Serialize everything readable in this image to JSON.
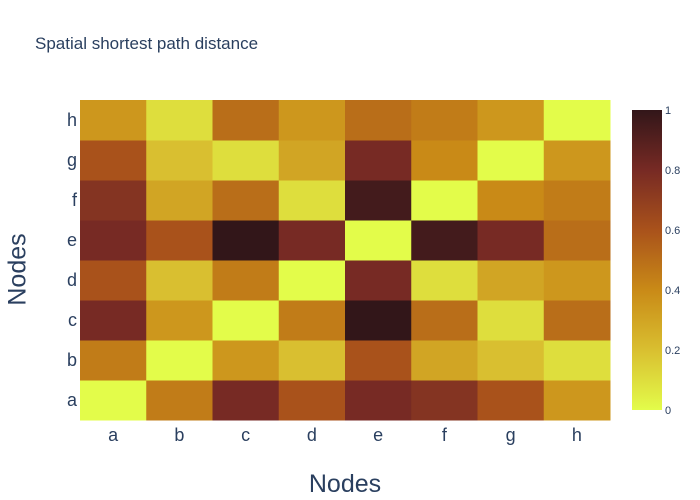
{
  "chart_data": {
    "type": "heatmap",
    "title": "Spatial shortest path distance",
    "xlabel": "Nodes",
    "ylabel": "Nodes",
    "x": [
      "a",
      "b",
      "c",
      "d",
      "e",
      "f",
      "g",
      "h"
    ],
    "y": [
      "a",
      "b",
      "c",
      "d",
      "e",
      "f",
      "g",
      "h"
    ],
    "z": [
      [
        0,
        0.45,
        0.8,
        0.6,
        0.8,
        0.75,
        0.6,
        0.35
      ],
      [
        0.45,
        0,
        0.35,
        0.2,
        0.6,
        0.3,
        0.2,
        0.1
      ],
      [
        0.8,
        0.35,
        0,
        0.45,
        1,
        0.5,
        0.1,
        0.5
      ],
      [
        0.6,
        0.2,
        0.45,
        0,
        0.8,
        0.1,
        0.3,
        0.35
      ],
      [
        0.8,
        0.6,
        1,
        0.8,
        0,
        0.95,
        0.8,
        0.5
      ],
      [
        0.75,
        0.3,
        0.5,
        0.1,
        0.95,
        0,
        0.4,
        0.45
      ],
      [
        0.6,
        0.2,
        0.1,
        0.3,
        0.8,
        0.4,
        0,
        0.35
      ],
      [
        0.35,
        0.1,
        0.5,
        0.35,
        0.5,
        0.45,
        0.35,
        0
      ]
    ],
    "zrange": [
      0,
      1
    ],
    "colorbar_ticks": [
      "0",
      "0.2",
      "0.4",
      "0.6",
      "0.8",
      "1"
    ],
    "colorscale": [
      [
        0,
        "#e3fc4a"
      ],
      [
        0.2,
        "#d9bf30"
      ],
      [
        0.4,
        "#c98a17"
      ],
      [
        0.6,
        "#a9521b"
      ],
      [
        0.8,
        "#772a24"
      ],
      [
        1,
        "#321619"
      ]
    ]
  }
}
